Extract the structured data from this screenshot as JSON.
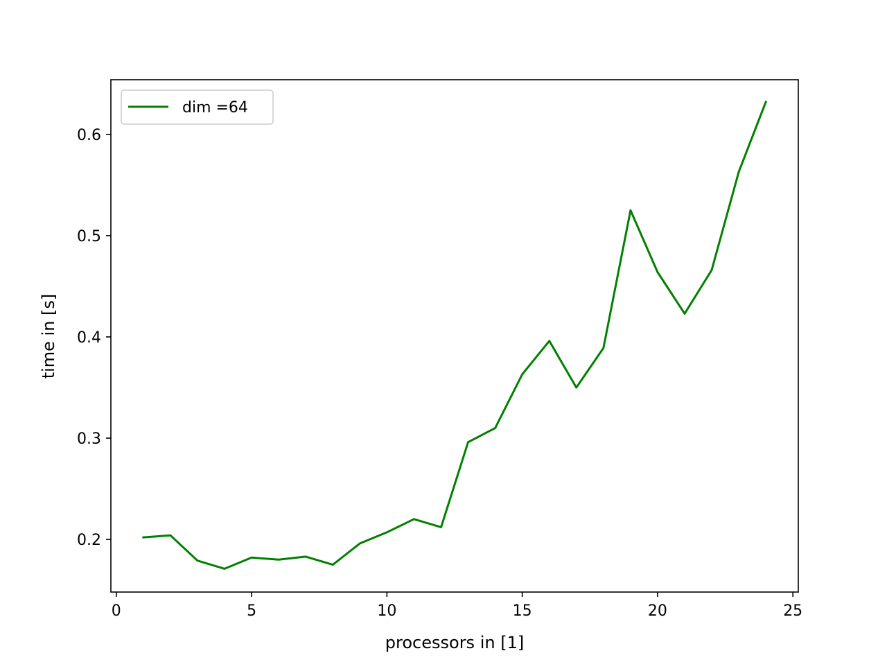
{
  "chart_data": {
    "type": "line",
    "title": "",
    "xlabel": "processors in [1]",
    "ylabel": "time in [s]",
    "xlim": [
      -0.2,
      25.2
    ],
    "ylim": [
      0.148,
      0.654
    ],
    "x_ticks": [
      0,
      5,
      10,
      15,
      20,
      25
    ],
    "x_tick_labels": [
      "0",
      "5",
      "10",
      "15",
      "20",
      "25"
    ],
    "y_ticks": [
      0.2,
      0.3,
      0.4,
      0.5,
      0.6
    ],
    "y_tick_labels": [
      "0.2",
      "0.3",
      "0.4",
      "0.5",
      "0.6"
    ],
    "grid": false,
    "legend": {
      "position": "upper left",
      "entries": [
        "dim =64"
      ]
    },
    "series": [
      {
        "name": "dim =64",
        "color": "#008000",
        "x": [
          1,
          2,
          3,
          4,
          5,
          6,
          7,
          8,
          9,
          10,
          11,
          12,
          13,
          14,
          15,
          16,
          17,
          18,
          19,
          20,
          21,
          22,
          23,
          24
        ],
        "y": [
          0.202,
          0.204,
          0.179,
          0.171,
          0.182,
          0.18,
          0.183,
          0.175,
          0.196,
          0.207,
          0.22,
          0.212,
          0.296,
          0.31,
          0.363,
          0.396,
          0.35,
          0.389,
          0.525,
          0.464,
          0.423,
          0.466,
          0.563,
          0.632
        ]
      }
    ]
  }
}
